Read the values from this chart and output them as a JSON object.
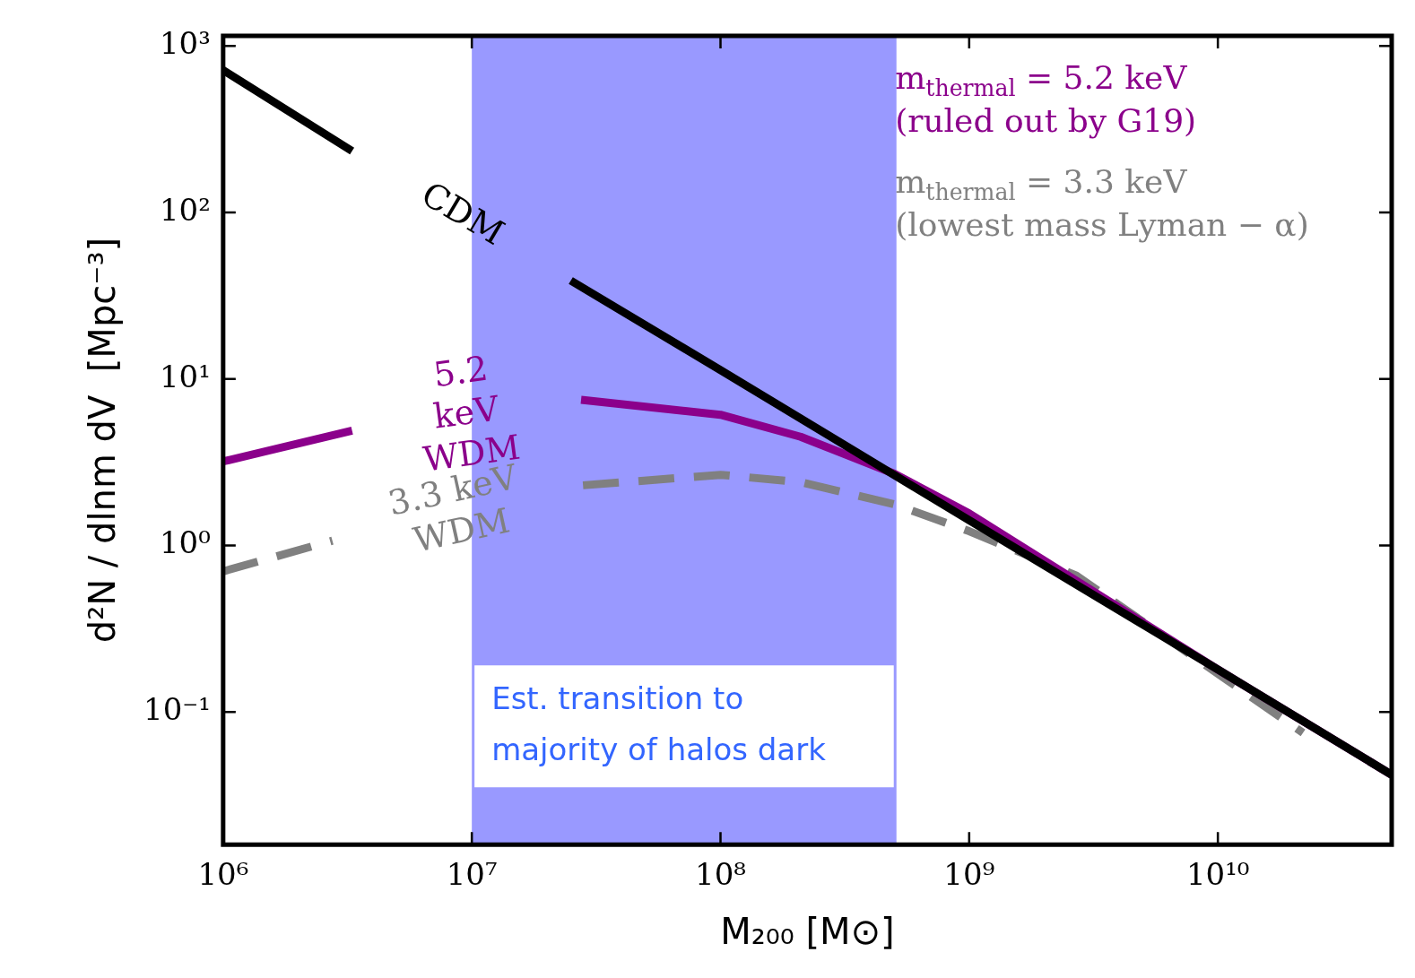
{
  "chart_data": {
    "type": "line",
    "xlabel": "M₂₀₀ [M⊙]",
    "ylabel": "d²N / dlnm dV  [Mpc⁻³]",
    "log": "xy",
    "xlim": [
      1000000,
      50000000000
    ],
    "ylim": [
      0.016,
      1150
    ],
    "xticks": [
      {
        "value": 1000000,
        "label": "10⁶"
      },
      {
        "value": 10000000,
        "label": "10⁷"
      },
      {
        "value": 100000000,
        "label": "10⁸"
      },
      {
        "value": 1000000000,
        "label": "10⁹"
      },
      {
        "value": 10000000000,
        "label": "10¹⁰"
      }
    ],
    "yticks": [
      {
        "value": 0.1,
        "label": "10⁻¹"
      },
      {
        "value": 1,
        "label": "10⁰"
      },
      {
        "value": 10,
        "label": "10¹"
      },
      {
        "value": 100,
        "label": "10²"
      },
      {
        "value": 1000,
        "label": "10³"
      }
    ],
    "grid": false,
    "legend": false,
    "marker": "none",
    "series": [
      {
        "name": "CDM",
        "color": "#000000",
        "line_style": "solid",
        "x": [
          1000000,
          3300000,
          10000000,
          25000000,
          100000000,
          1000000000,
          10000000000,
          50000000000
        ],
        "values": [
          716,
          234,
          null,
          39,
          11.3,
          1.42,
          0.18,
          0.042
        ]
      },
      {
        "name": "5.2 keV WDM",
        "color": "#8b008b",
        "line_style": "solid",
        "x": [
          1000000,
          3300000,
          10000000,
          27500000,
          100000000,
          210000000,
          500000000,
          1000000000,
          10000000000,
          50000000000
        ],
        "values": [
          3.2,
          4.9,
          null,
          7.5,
          6.1,
          4.5,
          2.7,
          1.56,
          0.18,
          0.042
        ]
      },
      {
        "name": "3.3 keV WDM",
        "color": "#808080",
        "line_style": "dashed",
        "x": [
          1000000,
          2750000,
          10000000,
          28000000,
          100000000,
          210000000,
          500000000,
          1000000000,
          2700000000,
          10000000000,
          22000000000
        ],
        "values": [
          0.7,
          1.07,
          null,
          2.3,
          2.66,
          2.4,
          1.77,
          1.22,
          0.66,
          0.17,
          0.075
        ]
      }
    ],
    "bands": [
      {
        "axis": "x",
        "from": 10000000,
        "to": 510000000,
        "label": "Est. transition to majority of halos dark",
        "color": "#9999ff"
      }
    ],
    "annotations": [
      "m$_{thermal}$ = 5.2 keV\n(ruled out by G19)",
      "m$_{thermal}$ = 3.3 keV\n(lowest mass Lyman − α)"
    ]
  }
}
